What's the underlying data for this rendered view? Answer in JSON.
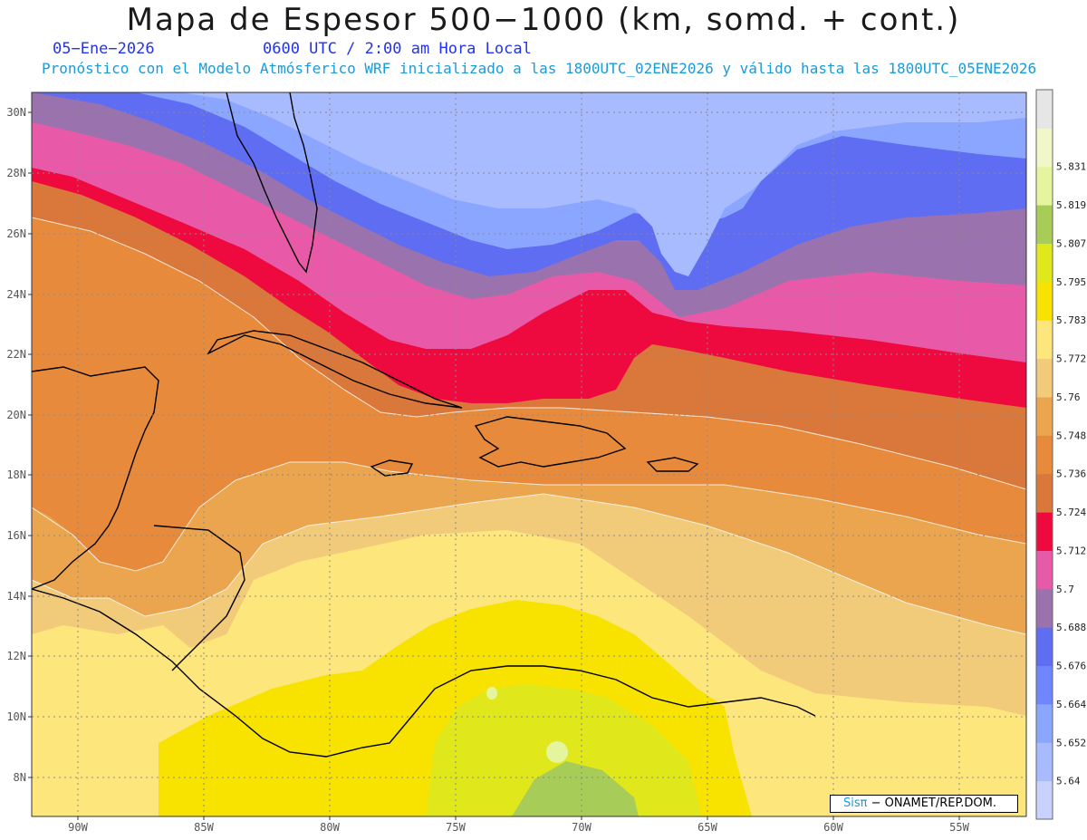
{
  "title": "Mapa de Espesor 500−1000 (km, somd. + cont.)",
  "date": "05−Ene−2026",
  "time_label": "0600 UTC / 2:00 am Hora Local",
  "forecast_text": "Pronóstico con el Modelo Atmósferico WRF inicializado a las 1800UTC_02ENE2026 y válido hasta las  1800UTC_05ENE2026",
  "credit": {
    "brand": "Sisπ",
    "org": " − ONAMET/REP.DOM."
  },
  "colors": {
    "title": "#1a1a1a",
    "date": "#2233ee",
    "forecast": "#1b9bd8",
    "brand": "#1b9bd8"
  },
  "lat_labels": [
    "30N",
    "28N",
    "26N",
    "24N",
    "22N",
    "20N",
    "18N",
    "16N",
    "14N",
    "12N",
    "10N",
    "8N"
  ],
  "lon_labels": [
    "90W",
    "85W",
    "80W",
    "75W",
    "70W",
    "65W",
    "60W",
    "55W"
  ],
  "legend": {
    "bands": [
      {
        "color": "#c9d2ff"
      },
      {
        "label": "5.64",
        "color": "#a8bbff"
      },
      {
        "label": "5.652",
        "color": "#8aa6ff"
      },
      {
        "label": "5.664",
        "color": "#6f86ff"
      },
      {
        "label": "5.676",
        "color": "#5f6df2"
      },
      {
        "label": "5.688",
        "color": "#9a72ae"
      },
      {
        "label": "5.7",
        "color": "#e85aa8"
      },
      {
        "label": "5.712",
        "color": "#ee0a3f"
      },
      {
        "label": "5.724",
        "color": "#d9783a"
      },
      {
        "label": "5.736",
        "color": "#e88a3c"
      },
      {
        "label": "5.748",
        "color": "#eaa54e"
      },
      {
        "label": "5.76",
        "color": "#f2cb7a"
      },
      {
        "label": "5.772",
        "color": "#fde67c"
      },
      {
        "label": "5.783",
        "color": "#f8e200"
      },
      {
        "label": "5.795",
        "color": "#e0e81c"
      },
      {
        "label": "5.807",
        "color": "#a8cc58"
      },
      {
        "label": "5.819",
        "color": "#e5f59e"
      },
      {
        "label": "5.831",
        "color": "#f1f7c8"
      },
      {
        "color": "#e6e6e6"
      }
    ]
  }
}
